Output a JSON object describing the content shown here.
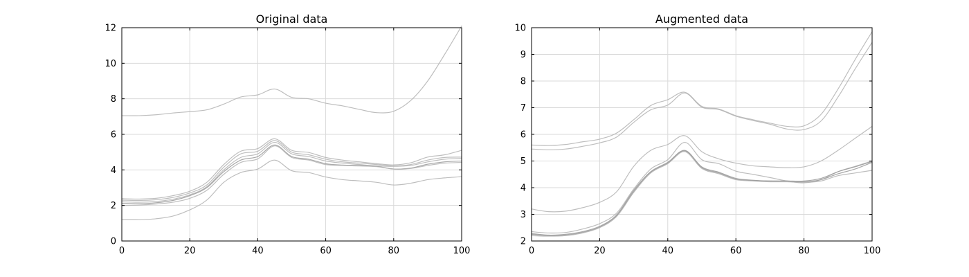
{
  "figure": {
    "background": "#ffffff"
  },
  "chart_data": [
    {
      "type": "line",
      "title": "Original data",
      "xlabel": "",
      "ylabel": "",
      "xlim": [
        0,
        100
      ],
      "ylim": [
        0,
        12
      ],
      "xticks": [
        0,
        20,
        40,
        60,
        80,
        100
      ],
      "yticks": [
        0,
        2,
        4,
        6,
        8,
        10,
        12
      ],
      "xtick_labels": [
        "0",
        "20",
        "40",
        "60",
        "80",
        "100"
      ],
      "ytick_labels": [
        "0",
        "2",
        "4",
        "6",
        "8",
        "10",
        "12"
      ],
      "grid": true,
      "series_color": "#b3b3b3",
      "x": [
        0,
        5,
        10,
        15,
        20,
        25,
        30,
        35,
        40,
        45,
        50,
        55,
        60,
        65,
        70,
        75,
        80,
        85,
        90,
        95,
        100
      ],
      "series": [
        {
          "color": "#b3b3b3",
          "values": [
            7.05,
            7.05,
            7.1,
            7.2,
            7.28,
            7.38,
            7.7,
            8.1,
            8.22,
            8.55,
            8.08,
            8.0,
            7.75,
            7.6,
            7.4,
            7.22,
            7.3,
            7.9,
            9.0,
            10.5,
            12.1
          ]
        },
        {
          "color": "#b3b3b3",
          "values": [
            2.38,
            2.36,
            2.4,
            2.55,
            2.8,
            3.3,
            4.3,
            5.05,
            5.2,
            5.75,
            5.1,
            4.98,
            4.7,
            4.55,
            4.45,
            4.35,
            4.28,
            4.4,
            4.72,
            4.85,
            5.1
          ]
        },
        {
          "color": "#b3b3b3",
          "values": [
            2.3,
            2.28,
            2.32,
            2.45,
            2.7,
            3.15,
            4.15,
            4.9,
            5.05,
            5.65,
            5.0,
            4.85,
            4.6,
            4.45,
            4.38,
            4.3,
            4.22,
            4.3,
            4.55,
            4.7,
            4.72
          ]
        },
        {
          "color": "#b3b3b3",
          "values": [
            2.2,
            2.18,
            2.22,
            2.35,
            2.6,
            3.05,
            4.0,
            4.7,
            4.9,
            5.55,
            4.9,
            4.75,
            4.5,
            4.38,
            4.3,
            4.22,
            4.2,
            4.25,
            4.45,
            4.6,
            4.65
          ]
        },
        {
          "color": "#999999",
          "values": [
            2.12,
            2.1,
            2.15,
            2.28,
            2.55,
            3.0,
            3.9,
            4.55,
            4.75,
            5.4,
            4.75,
            4.6,
            4.35,
            4.27,
            4.25,
            4.2,
            4.05,
            4.1,
            4.32,
            4.45,
            4.5
          ]
        },
        {
          "color": "#b3b3b3",
          "values": [
            2.0,
            2.02,
            2.08,
            2.18,
            2.4,
            2.85,
            3.75,
            4.42,
            4.62,
            5.35,
            4.7,
            4.55,
            4.3,
            4.25,
            4.22,
            4.18,
            4.05,
            4.08,
            4.25,
            4.38,
            4.42
          ]
        },
        {
          "color": "#b3b3b3",
          "values": [
            1.2,
            1.2,
            1.25,
            1.4,
            1.75,
            2.3,
            3.3,
            3.85,
            4.05,
            4.55,
            3.95,
            3.85,
            3.6,
            3.45,
            3.38,
            3.3,
            3.15,
            3.25,
            3.45,
            3.55,
            3.62
          ]
        }
      ]
    },
    {
      "type": "line",
      "title": "Augmented data",
      "xlabel": "",
      "ylabel": "",
      "xlim": [
        0,
        100
      ],
      "ylim": [
        2,
        10
      ],
      "xticks": [
        0,
        20,
        40,
        60,
        80,
        100
      ],
      "yticks": [
        2,
        3,
        4,
        5,
        6,
        7,
        8,
        9,
        10
      ],
      "xtick_labels": [
        "0",
        "20",
        "40",
        "60",
        "80",
        "100"
      ],
      "ytick_labels": [
        "2",
        "3",
        "4",
        "5",
        "6",
        "7",
        "8",
        "9",
        "10"
      ],
      "grid": true,
      "series_color": "#b3b3b3",
      "x": [
        0,
        5,
        10,
        15,
        20,
        25,
        30,
        35,
        40,
        45,
        50,
        55,
        60,
        65,
        70,
        75,
        80,
        85,
        90,
        95,
        100
      ],
      "series": [
        {
          "color": "#b3b3b3",
          "values": [
            5.6,
            5.58,
            5.62,
            5.72,
            5.82,
            6.05,
            6.55,
            7.08,
            7.3,
            7.58,
            7.05,
            6.95,
            6.7,
            6.55,
            6.42,
            6.3,
            6.32,
            6.75,
            7.7,
            8.8,
            9.85
          ]
        },
        {
          "color": "#b3b3b3",
          "values": [
            5.45,
            5.42,
            5.45,
            5.55,
            5.68,
            5.9,
            6.45,
            6.92,
            7.1,
            7.55,
            7.02,
            6.93,
            6.68,
            6.52,
            6.38,
            6.2,
            6.18,
            6.5,
            7.4,
            8.45,
            9.45
          ]
        },
        {
          "color": "#b3b3b3",
          "values": [
            3.2,
            3.1,
            3.12,
            3.25,
            3.45,
            3.85,
            4.8,
            5.4,
            5.62,
            5.95,
            5.35,
            5.08,
            4.92,
            4.82,
            4.78,
            4.75,
            4.78,
            5.0,
            5.4,
            5.85,
            6.3
          ]
        },
        {
          "color": "#b3b3b3",
          "values": [
            2.35,
            2.3,
            2.32,
            2.45,
            2.65,
            3.05,
            3.95,
            4.7,
            5.05,
            5.7,
            5.05,
            4.9,
            4.62,
            4.5,
            4.38,
            4.25,
            4.18,
            4.3,
            4.6,
            4.8,
            5.0
          ]
        },
        {
          "color": "#999999",
          "values": [
            2.28,
            2.22,
            2.25,
            2.35,
            2.55,
            2.98,
            3.9,
            4.6,
            4.95,
            5.4,
            4.78,
            4.58,
            4.35,
            4.28,
            4.25,
            4.25,
            4.25,
            4.35,
            4.6,
            4.78,
            4.98
          ]
        },
        {
          "color": "#999999",
          "values": [
            2.25,
            2.2,
            2.22,
            2.32,
            2.52,
            2.95,
            3.85,
            4.58,
            4.92,
            5.38,
            4.75,
            4.55,
            4.32,
            4.27,
            4.25,
            4.25,
            4.22,
            4.3,
            4.52,
            4.7,
            4.95
          ]
        },
        {
          "color": "#b3b3b3",
          "values": [
            2.2,
            2.18,
            2.2,
            2.3,
            2.5,
            2.92,
            3.82,
            4.55,
            4.9,
            5.35,
            4.72,
            4.52,
            4.3,
            4.25,
            4.22,
            4.22,
            4.2,
            4.25,
            4.45,
            4.55,
            4.65
          ]
        }
      ]
    }
  ]
}
